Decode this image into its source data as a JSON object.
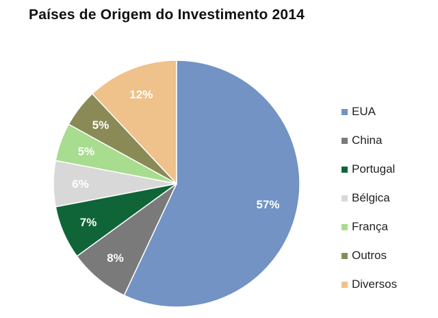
{
  "chart_data": {
    "type": "pie",
    "title": "Países de Origem do Investimento 2014",
    "legend_position": "right",
    "slices": [
      {
        "label": "EUA",
        "value": 57,
        "display": "57%",
        "color": "#7293c3",
        "label_color": "#ffffff"
      },
      {
        "label": "China",
        "value": 8,
        "display": "8%",
        "color": "#7a7a7a",
        "label_color": "#ffffff"
      },
      {
        "label": "Portugal",
        "value": 7,
        "display": "7%",
        "color": "#0f6538",
        "label_color": "#ffffff"
      },
      {
        "label": "Bélgica",
        "value": 6,
        "display": "6%",
        "color": "#d8d8d8",
        "label_color": "#ffffff"
      },
      {
        "label": "França",
        "value": 5,
        "display": "5%",
        "color": "#a8dc8e",
        "label_color": "#ffffff"
      },
      {
        "label": "Outros",
        "value": 5,
        "display": "5%",
        "color": "#8a8a57",
        "label_color": "#ffffff"
      },
      {
        "label": "Diversos",
        "value": 12,
        "display": "12%",
        "color": "#efc18b",
        "label_color": "#ffffff"
      }
    ]
  }
}
